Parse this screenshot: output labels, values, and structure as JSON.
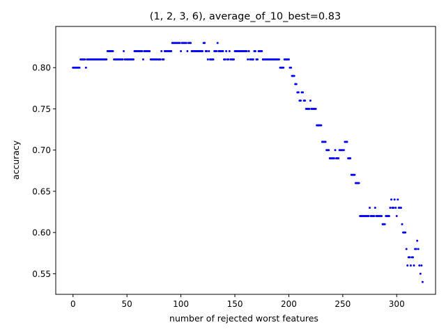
{
  "chart_data": {
    "type": "scatter",
    "title": "(1, 2, 3, 6), average_of_10_best=0.83",
    "xlabel": "number of rejected worst features",
    "ylabel": "accuracy",
    "xlim": [
      -16,
      336
    ],
    "ylim": [
      0.525,
      0.85
    ],
    "xticks": [
      0,
      50,
      100,
      150,
      200,
      250,
      300
    ],
    "yticks": [
      0.55,
      0.6,
      0.65,
      0.7,
      0.75,
      0.8
    ],
    "ytick_labels": [
      "0.55",
      "0.60",
      "0.65",
      "0.70",
      "0.75",
      "0.80"
    ],
    "grid": false,
    "marker_color": "#0000ff",
    "series": [
      {
        "values": [
          0.8,
          0.8,
          0.8,
          0.8,
          0.8,
          0.8,
          0.8,
          0.81,
          0.81,
          0.81,
          0.81,
          0.81,
          0.8,
          0.81,
          0.81,
          0.81,
          0.81,
          0.81,
          0.81,
          0.81,
          0.81,
          0.81,
          0.81,
          0.81,
          0.81,
          0.81,
          0.81,
          0.81,
          0.81,
          0.81,
          0.81,
          0.81,
          0.82,
          0.82,
          0.82,
          0.82,
          0.82,
          0.82,
          0.81,
          0.81,
          0.81,
          0.81,
          0.81,
          0.81,
          0.81,
          0.81,
          0.81,
          0.82,
          0.81,
          0.81,
          0.81,
          0.81,
          0.81,
          0.81,
          0.81,
          0.81,
          0.81,
          0.82,
          0.82,
          0.82,
          0.82,
          0.82,
          0.82,
          0.82,
          0.82,
          0.81,
          0.82,
          0.82,
          0.82,
          0.82,
          0.82,
          0.82,
          0.81,
          0.81,
          0.81,
          0.81,
          0.81,
          0.81,
          0.81,
          0.81,
          0.81,
          0.81,
          0.82,
          0.81,
          0.81,
          0.82,
          0.82,
          0.82,
          0.82,
          0.82,
          0.82,
          0.82,
          0.83,
          0.83,
          0.83,
          0.83,
          0.83,
          0.83,
          0.83,
          0.83,
          0.82,
          0.83,
          0.83,
          0.83,
          0.83,
          0.83,
          0.82,
          0.83,
          0.83,
          0.83,
          0.82,
          0.82,
          0.82,
          0.82,
          0.82,
          0.82,
          0.82,
          0.82,
          0.82,
          0.82,
          0.82,
          0.83,
          0.83,
          0.82,
          0.82,
          0.81,
          0.82,
          0.81,
          0.81,
          0.81,
          0.81,
          0.82,
          0.82,
          0.82,
          0.83,
          0.82,
          0.82,
          0.82,
          0.82,
          0.82,
          0.81,
          0.81,
          0.82,
          0.81,
          0.81,
          0.82,
          0.81,
          0.81,
          0.81,
          0.81,
          0.82,
          0.82,
          0.82,
          0.82,
          0.82,
          0.82,
          0.82,
          0.82,
          0.82,
          0.82,
          0.82,
          0.82,
          0.81,
          0.82,
          0.81,
          0.81,
          0.81,
          0.81,
          0.82,
          0.82,
          0.81,
          0.81,
          0.82,
          0.82,
          0.82,
          0.82,
          0.81,
          0.81,
          0.81,
          0.81,
          0.81,
          0.81,
          0.81,
          0.81,
          0.81,
          0.81,
          0.81,
          0.81,
          0.81,
          0.81,
          0.81,
          0.81,
          0.8,
          0.8,
          0.8,
          0.8,
          0.81,
          0.81,
          0.81,
          0.81,
          0.81,
          0.8,
          0.8,
          0.79,
          0.79,
          0.79,
          0.78,
          0.78,
          0.77,
          0.77,
          0.76,
          0.76,
          0.77,
          0.77,
          0.76,
          0.76,
          0.75,
          0.75,
          0.75,
          0.75,
          0.76,
          0.75,
          0.75,
          0.75,
          0.75,
          0.75,
          0.73,
          0.73,
          0.73,
          0.73,
          0.73,
          0.71,
          0.71,
          0.71,
          0.71,
          0.7,
          0.7,
          0.7,
          0.69,
          0.69,
          0.69,
          0.69,
          0.69,
          0.7,
          0.69,
          0.69,
          0.69,
          0.7,
          0.7,
          0.7,
          0.7,
          0.7,
          0.71,
          0.71,
          0.71,
          0.69,
          0.69,
          0.69,
          0.67,
          0.67,
          0.67,
          0.67,
          0.66,
          0.66,
          0.66,
          0.66,
          0.62,
          0.62,
          0.62,
          0.62,
          0.62,
          0.62,
          0.62,
          0.62,
          0.62,
          0.63,
          0.62,
          0.62,
          0.62,
          0.62,
          0.63,
          0.62,
          0.62,
          0.62,
          0.62,
          0.62,
          0.62,
          0.61,
          0.61,
          0.61,
          0.62,
          0.62,
          0.62,
          0.62,
          0.63,
          0.64,
          0.63,
          0.63,
          0.64,
          0.63,
          0.62,
          0.64,
          0.63,
          0.63,
          0.63,
          0.61,
          0.6,
          0.6,
          0.6,
          0.58,
          0.56,
          0.57,
          0.57,
          0.56,
          0.57,
          0.57,
          0.56,
          0.58,
          0.58,
          0.59,
          0.58,
          0.56,
          0.55,
          0.56,
          0.54
        ]
      }
    ]
  }
}
